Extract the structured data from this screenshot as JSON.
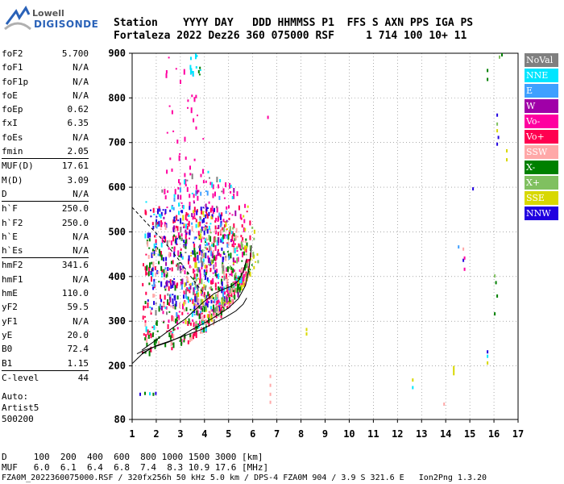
{
  "logo": {
    "line1": "Lowell",
    "line2": "DIGISONDE"
  },
  "header": {
    "labels": "Station    YYYY DAY   DDD HHMMSS P1  FFS S AXN PPS IGA PS",
    "values": "Fortaleza 2022 Dez26 360 075000 RSF     1 714 100 10+ 11"
  },
  "scaled": [
    {
      "key": "foF2",
      "value": "5.700"
    },
    {
      "key": "foF1",
      "value": "N/A"
    },
    {
      "key": "foF1p",
      "value": "N/A"
    },
    {
      "key": "foE",
      "value": "N/A"
    },
    {
      "key": "foEp",
      "value": "0.62"
    },
    {
      "key": "fxI",
      "value": "6.35"
    },
    {
      "key": "foEs",
      "value": "N/A"
    },
    {
      "key": "fmin",
      "value": "2.05"
    },
    {
      "key": "MUF(D)",
      "value": "17.61"
    },
    {
      "key": "M(D)",
      "value": "3.09"
    },
    {
      "key": "D",
      "value": "N/A"
    },
    {
      "key": "h`F",
      "value": "250.0"
    },
    {
      "key": "h`F2",
      "value": "250.0"
    },
    {
      "key": "h`E",
      "value": "N/A"
    },
    {
      "key": "h`Es",
      "value": "N/A"
    },
    {
      "key": "hmF2",
      "value": "341.6"
    },
    {
      "key": "hmF1",
      "value": "N/A"
    },
    {
      "key": "hmE",
      "value": "110.0"
    },
    {
      "key": "yF2",
      "value": "59.5"
    },
    {
      "key": "yF1",
      "value": "N/A"
    },
    {
      "key": "yE",
      "value": "20.0"
    },
    {
      "key": "B0",
      "value": "72.4"
    },
    {
      "key": "B1",
      "value": "1.15"
    },
    {
      "key": "C-level",
      "value": "44"
    }
  ],
  "auto": [
    "Auto:",
    "Artist5",
    "500200"
  ],
  "legend": [
    {
      "label": "NoVal",
      "color": "#808080"
    },
    {
      "label": "NNE",
      "color": "#00e5ff"
    },
    {
      "label": "E",
      "color": "#3fa0ff"
    },
    {
      "label": "W",
      "color": "#a000a8"
    },
    {
      "label": "Vo-",
      "color": "#ff00a0"
    },
    {
      "label": "Vo+",
      "color": "#ff0050"
    },
    {
      "label": "SSW",
      "color": "#ffa8a8"
    },
    {
      "label": "X-",
      "color": "#008000"
    },
    {
      "label": "X+",
      "color": "#80c060"
    },
    {
      "label": "SSE",
      "color": "#d8d800"
    },
    {
      "label": "NNW",
      "color": "#2000e0"
    }
  ],
  "muf_table": {
    "d_line": "D     100  200  400  600  800 1000 1500 3000 [km]",
    "muf_line": "MUF   6.0  6.1  6.4  6.8  7.4  8.3 10.9 17.6 [MHz]"
  },
  "footer": "FZA0M_2022360075000.RSF / 320fx256h 50 kHz 5.0 km / DPS-4 FZA0M 904 / 3.9 S 321.6 E   Ion2Png 1.3.20",
  "chart_data": {
    "type": "scatter",
    "title": "",
    "xlabel": "",
    "ylabel": "",
    "xlim": [
      1,
      17
    ],
    "ylim": [
      80,
      900
    ],
    "x_ticks": [
      1,
      2,
      3,
      4,
      5,
      6,
      7,
      8,
      9,
      10,
      11,
      12,
      13,
      14,
      15,
      16,
      17
    ],
    "y_ticks": [
      80,
      200,
      300,
      400,
      500,
      600,
      700,
      800,
      900
    ],
    "grid": true,
    "legend_position": "right",
    "trace_o_low": [
      [
        1.2,
        227
      ],
      [
        1.5,
        235
      ],
      [
        2.0,
        244
      ],
      [
        2.5,
        253
      ],
      [
        3.0,
        265
      ],
      [
        3.5,
        282
      ],
      [
        4.0,
        296
      ],
      [
        4.5,
        312
      ],
      [
        5.0,
        330
      ],
      [
        5.4,
        350
      ],
      [
        5.7,
        380
      ],
      [
        5.85,
        420
      ],
      [
        5.95,
        470
      ]
    ],
    "trace_x_low": [
      [
        1.4,
        228
      ],
      [
        2.0,
        245
      ],
      [
        2.7,
        258
      ],
      [
        3.3,
        270
      ],
      [
        3.9,
        282
      ],
      [
        4.4,
        296
      ],
      [
        4.9,
        310
      ],
      [
        5.3,
        323
      ],
      [
        5.6,
        338
      ],
      [
        5.75,
        352
      ]
    ],
    "profile": [
      [
        1.4,
        235
      ],
      [
        2.0,
        258
      ],
      [
        2.6,
        282
      ],
      [
        3.2,
        305
      ],
      [
        3.6,
        325
      ],
      [
        4.0,
        345
      ],
      [
        4.4,
        362
      ],
      [
        4.8,
        372
      ],
      [
        5.1,
        378
      ],
      [
        5.4,
        390
      ],
      [
        5.6,
        410
      ],
      [
        5.75,
        440
      ]
    ],
    "dashed_mode": [
      [
        1.0,
        555
      ],
      [
        1.6,
        520
      ],
      [
        2.3,
        480
      ],
      [
        2.9,
        440
      ],
      [
        3.5,
        395
      ],
      [
        4.0,
        360
      ]
    ],
    "solid_low": [
      [
        1.0,
        205
      ],
      [
        1.4,
        226
      ],
      [
        1.8,
        240
      ]
    ],
    "clusters": [
      {
        "color_index": 5,
        "x_range": [
          1.4,
          5.9
        ],
        "y_range": [
          228,
          560
        ],
        "n": 260
      },
      {
        "color_index": 4,
        "x_range": [
          2.2,
          5.8
        ],
        "y_range": [
          260,
          620
        ],
        "n": 200
      },
      {
        "color_index": 7,
        "x_range": [
          1.5,
          6.0
        ],
        "y_range": [
          228,
          500
        ],
        "n": 190
      },
      {
        "color_index": 10,
        "x_range": [
          1.6,
          4.8
        ],
        "y_range": [
          330,
          560
        ],
        "n": 130
      },
      {
        "color_index": 6,
        "x_range": [
          1.5,
          5.8
        ],
        "y_range": [
          230,
          520
        ],
        "n": 110
      },
      {
        "color_index": 1,
        "x_range": [
          1.5,
          5.6
        ],
        "y_range": [
          250,
          640
        ],
        "n": 70
      },
      {
        "color_index": 9,
        "x_range": [
          3.0,
          6.2
        ],
        "y_range": [
          300,
          560
        ],
        "n": 60
      },
      {
        "color_index": 8,
        "x_range": [
          3.5,
          6.2
        ],
        "y_range": [
          280,
          520
        ],
        "n": 60
      },
      {
        "color_index": 2,
        "x_range": [
          1.8,
          5.0
        ],
        "y_range": [
          300,
          600
        ],
        "n": 40
      },
      {
        "color_index": 3,
        "x_range": [
          2.0,
          5.5
        ],
        "y_range": [
          320,
          600
        ],
        "n": 40
      },
      {
        "color_index": 0,
        "x_range": [
          1.8,
          5.0
        ],
        "y_range": [
          300,
          640
        ],
        "n": 40
      },
      {
        "color_index": 4,
        "x_range": [
          2.3,
          4.0
        ],
        "y_range": [
          600,
          900
        ],
        "n": 35
      },
      {
        "color_index": 1,
        "x_range": [
          3.3,
          3.8
        ],
        "y_range": [
          860,
          900
        ],
        "n": 10
      },
      {
        "color_index": 7,
        "x_range": [
          3.7,
          3.8
        ],
        "y_range": [
          850,
          870
        ],
        "n": 3
      }
    ],
    "isolated_points": [
      {
        "x": 1.3,
        "y": 140,
        "c": 10
      },
      {
        "x": 1.5,
        "y": 142,
        "c": 7
      },
      {
        "x": 1.7,
        "y": 141,
        "c": 1
      },
      {
        "x": 1.85,
        "y": 140,
        "c": 7
      },
      {
        "x": 1.95,
        "y": 142,
        "c": 10
      },
      {
        "x": 6.7,
        "y": 180,
        "c": 6
      },
      {
        "x": 6.7,
        "y": 160,
        "c": 6
      },
      {
        "x": 6.7,
        "y": 140,
        "c": 6
      },
      {
        "x": 6.7,
        "y": 122,
        "c": 6
      },
      {
        "x": 6.6,
        "y": 760,
        "c": 4
      },
      {
        "x": 8.2,
        "y": 285,
        "c": 9
      },
      {
        "x": 8.2,
        "y": 275,
        "c": 9
      },
      {
        "x": 12.6,
        "y": 172,
        "c": 9
      },
      {
        "x": 12.6,
        "y": 155,
        "c": 1
      },
      {
        "x": 13.9,
        "y": 118,
        "c": 6
      },
      {
        "x": 14.3,
        "y": 200,
        "c": 9
      },
      {
        "x": 14.3,
        "y": 193,
        "c": 9
      },
      {
        "x": 14.3,
        "y": 186,
        "c": 9
      },
      {
        "x": 14.5,
        "y": 470,
        "c": 2
      },
      {
        "x": 14.7,
        "y": 465,
        "c": 6
      },
      {
        "x": 14.7,
        "y": 440,
        "c": 10
      },
      {
        "x": 14.75,
        "y": 420,
        "c": 4
      },
      {
        "x": 14.75,
        "y": 445,
        "c": 4
      },
      {
        "x": 15.1,
        "y": 600,
        "c": 10
      },
      {
        "x": 15.7,
        "y": 865,
        "c": 7
      },
      {
        "x": 15.7,
        "y": 845,
        "c": 7
      },
      {
        "x": 15.7,
        "y": 235,
        "c": 10
      },
      {
        "x": 15.7,
        "y": 225,
        "c": 1
      },
      {
        "x": 15.7,
        "y": 210,
        "c": 9
      },
      {
        "x": 16.0,
        "y": 405,
        "c": 8
      },
      {
        "x": 16.05,
        "y": 390,
        "c": 7
      },
      {
        "x": 16.1,
        "y": 360,
        "c": 7
      },
      {
        "x": 16.0,
        "y": 320,
        "c": 7
      },
      {
        "x": 16.1,
        "y": 765,
        "c": 10
      },
      {
        "x": 16.1,
        "y": 745,
        "c": 8
      },
      {
        "x": 16.1,
        "y": 730,
        "c": 9
      },
      {
        "x": 16.15,
        "y": 715,
        "c": 10
      },
      {
        "x": 16.1,
        "y": 700,
        "c": 10
      },
      {
        "x": 16.3,
        "y": 900,
        "c": 7
      },
      {
        "x": 16.2,
        "y": 895,
        "c": 8
      },
      {
        "x": 16.5,
        "y": 685,
        "c": 9
      },
      {
        "x": 16.5,
        "y": 665,
        "c": 9
      }
    ]
  }
}
